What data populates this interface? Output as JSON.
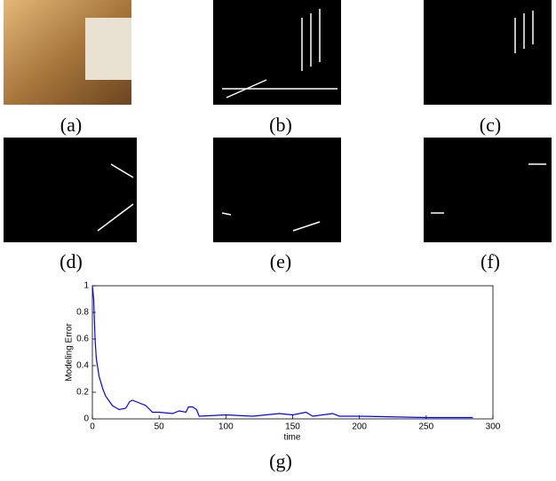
{
  "panels": [
    {
      "label": "(a)"
    },
    {
      "label": "(b)"
    },
    {
      "label": "(c)"
    },
    {
      "label": "(d)"
    },
    {
      "label": "(e)"
    },
    {
      "label": "(f)"
    },
    {
      "label": "(g)"
    }
  ],
  "chart_data": {
    "type": "line",
    "xlabel": "time",
    "ylabel": "Modeling Error",
    "color": "#0000ff",
    "x": [
      0,
      1,
      2,
      3,
      5,
      8,
      10,
      15,
      20,
      25,
      28,
      30,
      35,
      40,
      45,
      50,
      60,
      65,
      70,
      72,
      75,
      78,
      80,
      100,
      120,
      140,
      150,
      160,
      165,
      180,
      185,
      200,
      250,
      285
    ],
    "values": [
      1,
      0.9,
      0.6,
      0.45,
      0.32,
      0.22,
      0.17,
      0.1,
      0.07,
      0.08,
      0.13,
      0.14,
      0.12,
      0.1,
      0.05,
      0.05,
      0.04,
      0.06,
      0.05,
      0.09,
      0.09,
      0.07,
      0.02,
      0.03,
      0.02,
      0.04,
      0.03,
      0.05,
      0.02,
      0.04,
      0.02,
      0.02,
      0.01,
      0.01
    ],
    "xlim": [
      0,
      300
    ],
    "xticks": [
      0,
      50,
      100,
      150,
      200,
      250,
      300
    ],
    "ylim": [
      0,
      1
    ],
    "yticks": [
      0,
      0.2,
      0.4,
      0.6,
      0.8,
      1
    ]
  }
}
